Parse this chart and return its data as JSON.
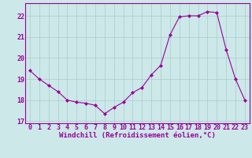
{
  "x": [
    0,
    1,
    2,
    3,
    4,
    5,
    6,
    7,
    8,
    9,
    10,
    11,
    12,
    13,
    14,
    15,
    16,
    17,
    18,
    19,
    20,
    21,
    22,
    23
  ],
  "y": [
    19.4,
    19.0,
    18.7,
    18.4,
    18.0,
    17.9,
    17.85,
    17.75,
    17.35,
    17.65,
    17.9,
    18.35,
    18.6,
    19.2,
    19.65,
    21.1,
    21.95,
    22.0,
    22.0,
    22.2,
    22.15,
    20.4,
    19.0,
    18.0
  ],
  "line_color": "#990099",
  "marker": "D",
  "marker_size": 2.0,
  "bg_color": "#cce8e8",
  "grid_color": "#aacccc",
  "xlabel": "Windchill (Refroidissement éolien,°C)",
  "xlim": [
    -0.5,
    23.5
  ],
  "ylim": [
    16.9,
    22.6
  ],
  "yticks": [
    17,
    18,
    19,
    20,
    21,
    22
  ],
  "xticks": [
    0,
    1,
    2,
    3,
    4,
    5,
    6,
    7,
    8,
    9,
    10,
    11,
    12,
    13,
    14,
    15,
    16,
    17,
    18,
    19,
    20,
    21,
    22,
    23
  ],
  "label_color": "#990099",
  "tick_color": "#990099",
  "spine_color": "#990099",
  "xlabel_fontsize": 6.5,
  "tick_fontsize": 6.0
}
